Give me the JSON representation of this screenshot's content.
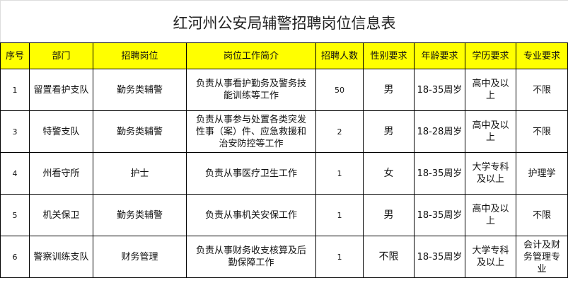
{
  "title": "红河州公安局辅警招聘岗位信息表",
  "header_color": "#ffff00",
  "columns": [
    "序号",
    "部门",
    "招聘岗位",
    "岗位工作简介",
    "招聘人数",
    "性别要求",
    "年龄要求",
    "学历要求",
    "专业要求"
  ],
  "rows": [
    {
      "no": "1",
      "dept": "留置看护支队",
      "post": "勤务类辅警",
      "desc": "负责从事看护勤务及警务技能训练等工作",
      "count": "50",
      "gender": "男",
      "age": "18-35周岁",
      "edu": "高中及以上",
      "major": "不限"
    },
    {
      "no": "3",
      "dept": "特警支队",
      "post": "勤务类辅警",
      "desc": "负责从事参与处置各类突发性事（案）件、应急救援和治安防控等工作",
      "count": "2",
      "gender": "男",
      "age": "18-28周岁",
      "edu": "高中及以上",
      "major": "不限"
    },
    {
      "no": "4",
      "dept": "州看守所",
      "post": "护士",
      "desc": "负责从事医疗卫生工作",
      "count": "1",
      "gender": "女",
      "age": "18-35周岁",
      "edu": "大学专科及以上",
      "major": "护理学"
    },
    {
      "no": "5",
      "dept": "机关保卫",
      "post": "勤务类辅警",
      "desc": "负责从事机关安保工作",
      "count": "1",
      "gender": "男",
      "age": "18-35周岁",
      "edu": "高中及以上",
      "major": "不限"
    },
    {
      "no": "6",
      "dept": "警察训练支队",
      "post": "财务管理",
      "desc": "负责从事财务收支核算及后勤保障工作",
      "count": "1",
      "gender": "不限",
      "age": "18-35周岁",
      "edu": "大学专科及以上",
      "major": "会计及财务管理专业"
    }
  ]
}
